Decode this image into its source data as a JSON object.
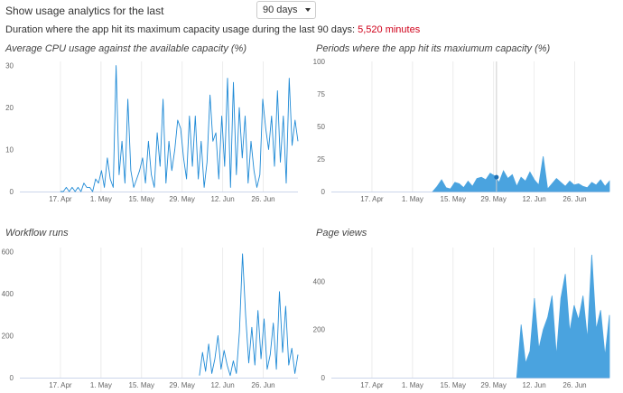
{
  "controls": {
    "label": "Show usage analytics for the last",
    "period_value": "90 days"
  },
  "duration": {
    "text": "Duration where the app hit its maximum capacity usage during the last 90 days:",
    "value": "5,520 minutes"
  },
  "chart_data": [
    {
      "type": "line",
      "title": "Average CPU usage against the available capacity (%)",
      "x_ticks": [
        "17. Apr",
        "1. May",
        "15. May",
        "29. May",
        "12. Jun",
        "26. Jun"
      ],
      "y_ticks": [
        0,
        10,
        20,
        30
      ],
      "ylim": [
        0,
        31
      ],
      "x_start": "2023-04-03",
      "x_end": "2023-07-08",
      "color": "#1f8ad6",
      "data_start": "2023-04-17",
      "series": [
        {
          "values": [
            0,
            0,
            1,
            0,
            1,
            0,
            1,
            0,
            2,
            1,
            1,
            0,
            3,
            2,
            5,
            1,
            8,
            3,
            1,
            30,
            4,
            12,
            2,
            22,
            5,
            1,
            3,
            5,
            8,
            2,
            12,
            4,
            1,
            14,
            6,
            22,
            2,
            12,
            5,
            10,
            17,
            15,
            8,
            3,
            18,
            6,
            18,
            3,
            12,
            1,
            7,
            23,
            12,
            14,
            3,
            18,
            6,
            27,
            1,
            26,
            4,
            20,
            8,
            18,
            2,
            12,
            5,
            1,
            4,
            22,
            15,
            10,
            18,
            6,
            24,
            7,
            18,
            2,
            27,
            11,
            17,
            12
          ]
        }
      ]
    },
    {
      "type": "area",
      "title": "Periods where the app hit its maxiumum capacity (%)",
      "x_ticks": [
        "17. Apr",
        "1. May",
        "15. May",
        "29. May",
        "12. Jun",
        "26. Jun"
      ],
      "y_ticks": [
        0,
        25,
        50,
        75,
        100
      ],
      "ylim": [
        0,
        100
      ],
      "x_start": "2023-04-03",
      "x_end": "2023-07-08",
      "color": "#4aa3df",
      "data_start": "2023-05-08",
      "series": [
        {
          "values": [
            0,
            4,
            9,
            3,
            2,
            7,
            6,
            3,
            8,
            4,
            10,
            11,
            9,
            14,
            12,
            7,
            16,
            10,
            13,
            4,
            11,
            8,
            15,
            9,
            5,
            27,
            2,
            6,
            10,
            7,
            4,
            8,
            5,
            6,
            4,
            3,
            7,
            5,
            9,
            4,
            8
          ]
        }
      ],
      "annotations": [
        {
          "x": "2023-05-30",
          "y": 11
        }
      ]
    },
    {
      "type": "line",
      "title": "Workflow runs",
      "x_ticks": [
        "17. Apr",
        "1. May",
        "15. May",
        "29. May",
        "12. Jun",
        "26. Jun"
      ],
      "y_ticks": [
        0,
        200,
        400,
        600
      ],
      "ylim": [
        0,
        620
      ],
      "x_start": "2023-04-03",
      "x_end": "2023-07-08",
      "color": "#1f8ad6",
      "data_start": "2023-06-04",
      "series": [
        {
          "values": [
            10,
            120,
            30,
            160,
            20,
            90,
            200,
            40,
            130,
            60,
            10,
            80,
            20,
            220,
            590,
            300,
            70,
            240,
            60,
            320,
            90,
            280,
            40,
            110,
            260,
            40,
            410,
            120,
            340,
            60,
            140,
            20,
            110
          ]
        }
      ]
    },
    {
      "type": "area",
      "title": "Page views",
      "x_ticks": [
        "17. Apr",
        "1. May",
        "15. May",
        "29. May",
        "12. Jun",
        "26. Jun"
      ],
      "y_ticks": [
        0,
        200,
        400
      ],
      "ylim": [
        0,
        540
      ],
      "x_start": "2023-04-03",
      "x_end": "2023-07-08",
      "color": "#4aa3df",
      "data_start": "2023-06-06",
      "series": [
        {
          "values": [
            0,
            220,
            60,
            110,
            330,
            120,
            200,
            250,
            340,
            90,
            330,
            430,
            190,
            300,
            240,
            340,
            160,
            510,
            200,
            280,
            90,
            260
          ]
        }
      ]
    }
  ]
}
